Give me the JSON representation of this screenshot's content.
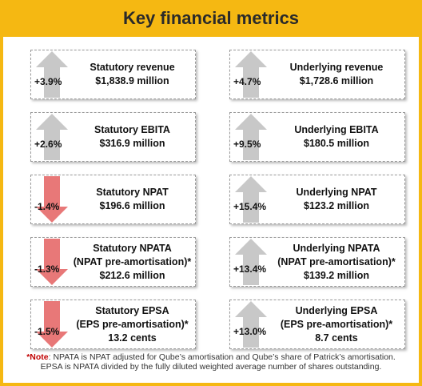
{
  "header": {
    "title": "Key financial metrics"
  },
  "cards": [
    {
      "change": "+3.9%",
      "direction": "up",
      "label": [
        "Statutory revenue"
      ],
      "value": "$1,838.9 million"
    },
    {
      "change": "+4.7%",
      "direction": "up",
      "label": [
        "Underlying revenue"
      ],
      "value": "$1,728.6 million"
    },
    {
      "change": "+2.6%",
      "direction": "up",
      "label": [
        "Statutory EBITA"
      ],
      "value": "$316.9 million"
    },
    {
      "change": "+9.5%",
      "direction": "up",
      "label": [
        "Underlying EBITA"
      ],
      "value": "$180.5 million"
    },
    {
      "change": "-1.4%",
      "direction": "down",
      "label": [
        "Statutory NPAT"
      ],
      "value": "$196.6 million"
    },
    {
      "change": "+15.4%",
      "direction": "up",
      "label": [
        "Underlying NPAT"
      ],
      "value": "$123.2 million"
    },
    {
      "change": "-1.3%",
      "direction": "down",
      "label": [
        "Statutory NPATA",
        "(NPAT pre-amortisation)*"
      ],
      "value": "$212.6 million"
    },
    {
      "change": "+13.4%",
      "direction": "up",
      "label": [
        "Underlying NPATA",
        "(NPAT pre-amortisation)*"
      ],
      "value": "$139.2 million"
    },
    {
      "change": "-1.5%",
      "direction": "down",
      "label": [
        "Statutory EPSA",
        "(EPS pre-amortisation)*"
      ],
      "value": "13.2 cents"
    },
    {
      "change": "+13.0%",
      "direction": "up",
      "label": [
        "Underlying EPSA",
        "(EPS pre-amortisation)*"
      ],
      "value": "8.7 cents"
    }
  ],
  "note": {
    "label": "*Note",
    "lines": [
      ": NPATA is NPAT adjusted for Qube’s amortisation and Qube’s share of Patrick’s amortisation.",
      "EPSA is NPATA divided by the fully diluted weighted average number of shares outstanding."
    ]
  }
}
